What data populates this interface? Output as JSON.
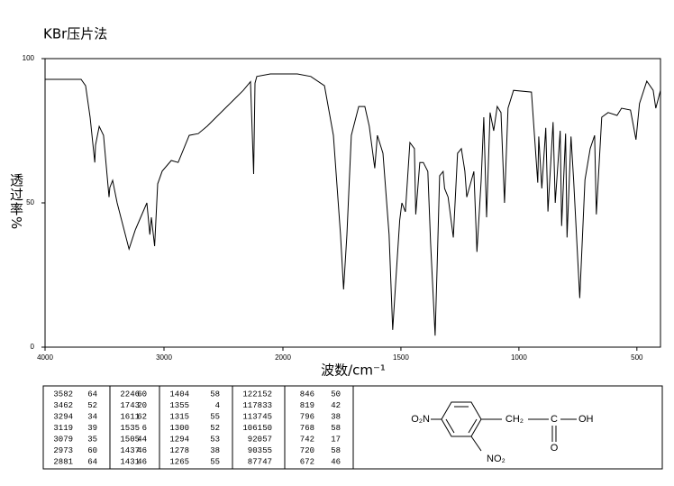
{
  "chart_data": {
    "type": "line",
    "title": "KBr压片法",
    "x_label": "波数/cm⁻¹",
    "y_label": "透过率%",
    "color": "#000000",
    "x": [
      4000,
      3697,
      3659,
      3621,
      3582,
      3576,
      3545,
      3508,
      3462,
      3455,
      3432,
      3394,
      3294,
      3242,
      3167,
      3144,
      3119,
      3106,
      3079,
      3053,
      3015,
      2939,
      2881,
      2788,
      2712,
      2636,
      2561,
      2485,
      2409,
      2333,
      2273,
      2246,
      2235,
      2220,
      2106,
      1939,
      1882,
      1824,
      1786,
      1756,
      1743,
      1729,
      1710,
      1679,
      1653,
      1634,
      1611,
      1600,
      1576,
      1550,
      1535,
      1519,
      1505,
      1496,
      1481,
      1462,
      1443,
      1437,
      1420,
      1405,
      1386,
      1374,
      1355,
      1347,
      1336,
      1321,
      1315,
      1300,
      1278,
      1260,
      1244,
      1229,
      1221,
      1191,
      1178,
      1160,
      1149,
      1137,
      1122,
      1107,
      1092,
      1076,
      1061,
      1046,
      1023,
      947,
      920,
      916,
      903,
      886,
      877,
      855,
      846,
      825,
      819,
      802,
      796,
      779,
      768,
      742,
      720,
      698,
      679,
      672,
      649,
      622,
      584,
      565,
      527,
      504,
      489,
      458,
      431,
      420,
      400
    ],
    "values": [
      92.8,
      92.8,
      90.6,
      79.7,
      64,
      70,
      76.5,
      73.4,
      52,
      55.3,
      57.8,
      50,
      34,
      40.6,
      47.8,
      50,
      39,
      45,
      35,
      56.6,
      61,
      64.7,
      64,
      73.4,
      74,
      76.6,
      79.7,
      82.8,
      85.9,
      89,
      92,
      60,
      91.5,
      93.8,
      94.7,
      94.7,
      93.8,
      90.6,
      73.4,
      39,
      20,
      39,
      73.4,
      83.4,
      83.4,
      76.6,
      62,
      73.4,
      67.2,
      39,
      6,
      26.6,
      44,
      50,
      46.9,
      70.9,
      68.8,
      46,
      64,
      64,
      60.9,
      35.9,
      4,
      26.6,
      59.4,
      60.9,
      55,
      52,
      38,
      67.2,
      68.8,
      61,
      52,
      60.9,
      33,
      57.8,
      79.7,
      45,
      81.3,
      75,
      83.4,
      81.3,
      50,
      82.8,
      89,
      88.4,
      57,
      73,
      55,
      76,
      47,
      78,
      50,
      75,
      42,
      74,
      38,
      73,
      58,
      17,
      58,
      68.8,
      73.4,
      46,
      79.7,
      81.3,
      80.3,
      82.8,
      82.2,
      71.9,
      84.4,
      92.2,
      89,
      82.8,
      89
    ],
    "xlim": [
      4000,
      400
    ],
    "ylim": [
      0,
      100
    ],
    "xticks": [
      4000,
      3000,
      2000,
      1500,
      1000,
      500
    ],
    "yticks": [
      0,
      50,
      100
    ]
  },
  "peak_table": [
    [
      [
        3582,
        64
      ],
      [
        3462,
        52
      ],
      [
        3294,
        34
      ],
      [
        3119,
        39
      ],
      [
        3079,
        35
      ],
      [
        2973,
        60
      ],
      [
        2881,
        64
      ]
    ],
    [
      [
        2246,
        60
      ],
      [
        1743,
        20
      ],
      [
        1611,
        62
      ],
      [
        1535,
        6
      ],
      [
        1505,
        44
      ],
      [
        1437,
        46
      ],
      [
        1431,
        46
      ]
    ],
    [
      [
        1404,
        58
      ],
      [
        1355,
        4
      ],
      [
        1315,
        55
      ],
      [
        1300,
        52
      ],
      [
        1294,
        53
      ],
      [
        1278,
        38
      ],
      [
        1265,
        55
      ]
    ],
    [
      [
        1221,
        52
      ],
      [
        1178,
        33
      ],
      [
        1137,
        45
      ],
      [
        1061,
        50
      ],
      [
        920,
        57
      ],
      [
        903,
        55
      ],
      [
        877,
        47
      ]
    ],
    [
      [
        846,
        50
      ],
      [
        819,
        42
      ],
      [
        796,
        38
      ],
      [
        768,
        58
      ],
      [
        742,
        17
      ],
      [
        720,
        58
      ],
      [
        672,
        46
      ]
    ]
  ],
  "structure": {
    "left_group": "O₂N",
    "methylene": "CH₂",
    "carbon": "C",
    "hydroxyl": "OH",
    "carbonyl_oxygen": "O",
    "nitro": "NO₂"
  }
}
